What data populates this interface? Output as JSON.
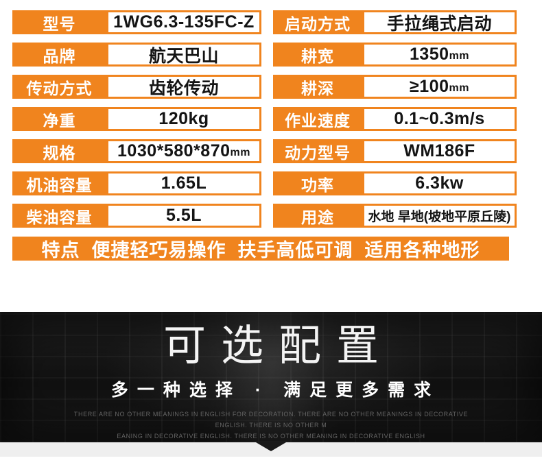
{
  "colors": {
    "accent_orange": "#f0841e",
    "value_text": "#141414",
    "banner_bg": "#141414",
    "banner_title": "#f4f4f4",
    "banner_english": "#646464",
    "bottom_strip": "#efefef"
  },
  "table": {
    "left": [
      {
        "label": "型号",
        "value": "1WG6.3-135FC-Z"
      },
      {
        "label": "品牌",
        "value": "航天巴山"
      },
      {
        "label": "传动方式",
        "value": "齿轮传动"
      },
      {
        "label": "净重",
        "value": "120kg"
      },
      {
        "label": "规格",
        "value": "1030*580*870",
        "unit": "mm"
      },
      {
        "label": "机油容量",
        "value": "1.65L"
      },
      {
        "label": "柴油容量",
        "value": "5.5L"
      }
    ],
    "right": [
      {
        "label": "启动方式",
        "value": "手拉绳式启动"
      },
      {
        "label": "耕宽",
        "value": "1350",
        "unit": "mm"
      },
      {
        "label": "耕深",
        "value": "≥100",
        "unit": "mm"
      },
      {
        "label": "作业速度",
        "value": "0.1~0.3m/s"
      },
      {
        "label": "动力型号",
        "value": "WM186F"
      },
      {
        "label": "功率",
        "value": "6.3kw"
      },
      {
        "label": "用途",
        "value": "水地 旱地(坡地平原丘陵)"
      }
    ]
  },
  "features_bar": "特点  便捷轻巧易操作  扶手高低可调  适用各种地形",
  "banner": {
    "title": "可选配置",
    "subtitle": "多一种选择 · 满足更多需求",
    "english_line1": "THERE ARE NO OTHER MEANINGS IN ENGLISH FOR DECORATION. THERE ARE NO OTHER MEANINGS IN DECORATIVE ENGLISH. THERE IS NO OTHER M",
    "english_line2": "EANING IN DECORATIVE ENGLISH. THERE IS NO OTHER MEANING IN DECORATIVE ENGLISH"
  }
}
